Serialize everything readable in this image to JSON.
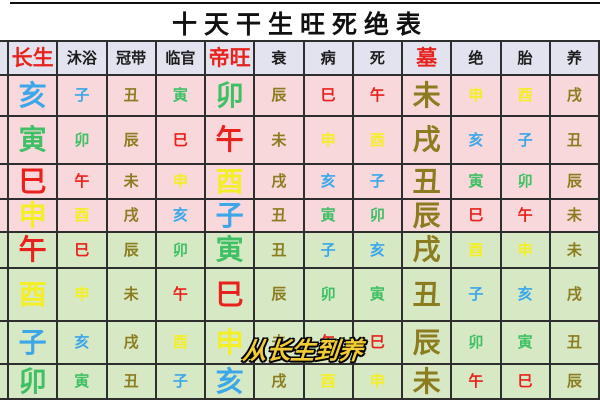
{
  "title": "十天干生旺死绝表",
  "watermark": "从长生到养",
  "colors": {
    "header_red": "#e8231d",
    "header_text": "#1c1c1c",
    "header_bg": "#e2e3ef",
    "pink_row_bg": "#f8d8da",
    "green_row_bg": "#d7e9c4",
    "border": "#2e2e2e",
    "water": "#3ba7e9",
    "wood": "#3fc065",
    "fire": "#e8211c",
    "metal": "#f4ee26",
    "earth": "#8c7c20",
    "watermark_fill": "#f3cc35"
  },
  "branch_elements": {
    "子": "water",
    "丑": "earth",
    "寅": "wood",
    "卯": "wood",
    "辰": "earth",
    "巳": "fire",
    "午": "fire",
    "未": "earth",
    "申": "metal",
    "酉": "metal",
    "戌": "earth",
    "亥": "water"
  },
  "header": {
    "cells": [
      {
        "label": "长生",
        "emphasis": true
      },
      {
        "label": "沐浴",
        "emphasis": false
      },
      {
        "label": "冠带",
        "emphasis": false
      },
      {
        "label": "临官",
        "emphasis": false
      },
      {
        "label": "帝旺",
        "emphasis": true
      },
      {
        "label": "衰",
        "emphasis": false
      },
      {
        "label": "病",
        "emphasis": false
      },
      {
        "label": "死",
        "emphasis": false
      },
      {
        "label": "墓",
        "emphasis": true
      },
      {
        "label": "绝",
        "emphasis": false
      },
      {
        "label": "胎",
        "emphasis": false
      },
      {
        "label": "养",
        "emphasis": false
      }
    ]
  },
  "table": {
    "major_columns": [
      0,
      4,
      8
    ],
    "rows": [
      {
        "section": "pink",
        "cells": [
          "亥",
          "子",
          "丑",
          "寅",
          "卯",
          "辰",
          "巳",
          "午",
          "未",
          "申",
          "酉",
          "戌"
        ]
      },
      {
        "section": "pink",
        "cells": [
          "寅",
          "卯",
          "辰",
          "巳",
          "午",
          "未",
          "申",
          "酉",
          "戌",
          "亥",
          "子",
          "丑"
        ]
      },
      {
        "section": "pink",
        "cells": [
          "巳",
          "午",
          "未",
          "申",
          "酉",
          "戌",
          "亥",
          "子",
          "丑",
          "寅",
          "卯",
          "辰"
        ]
      },
      {
        "section": "pink",
        "cells": [
          "申",
          "酉",
          "戌",
          "亥",
          "子",
          "丑",
          "寅",
          "卯",
          "辰",
          "巳",
          "午",
          "未"
        ]
      },
      {
        "section": "green",
        "cells": [
          "午",
          "巳",
          "辰",
          "卯",
          "寅",
          "丑",
          "子",
          "亥",
          "戌",
          "酉",
          "申",
          "未"
        ]
      },
      {
        "section": "green",
        "cells": [
          "酉",
          "申",
          "未",
          "午",
          "巳",
          "辰",
          "卯",
          "寅",
          "丑",
          "子",
          "亥",
          "戌"
        ]
      },
      {
        "section": "green",
        "cells": [
          "子",
          "亥",
          "戌",
          "酉",
          "申",
          "未",
          "午",
          "巳",
          "辰",
          "卯",
          "寅",
          "丑"
        ]
      },
      {
        "section": "green",
        "cells": [
          "卯",
          "寅",
          "丑",
          "子",
          "亥",
          "戌",
          "酉",
          "申",
          "未",
          "午",
          "巳",
          "辰"
        ]
      }
    ]
  }
}
